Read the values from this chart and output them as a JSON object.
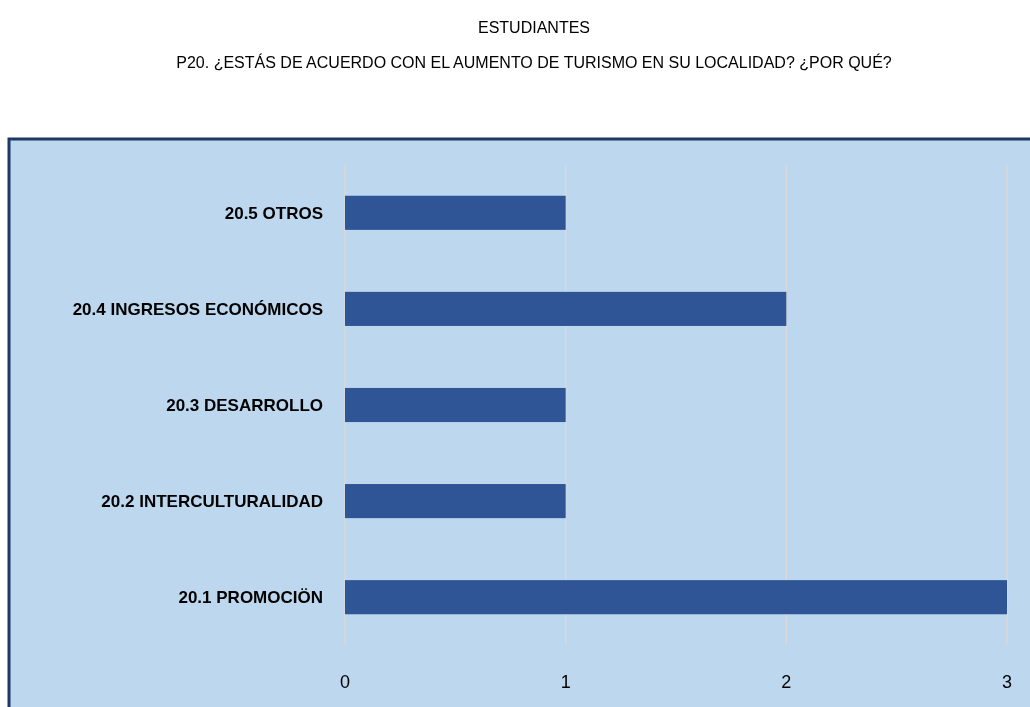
{
  "chart_data": {
    "type": "bar",
    "orientation": "horizontal",
    "title": "ESTUDIANTES",
    "subtitle": "P20. ¿ESTÁS DE ACUERDO CON EL AUMENTO DE TURISMO EN SU LOCALIDAD? ¿POR QUÉ?",
    "categories": [
      "20.5 OTROS",
      "20.4 INGRESOS ECONÓMICOS",
      "20.3 DESARROLLO",
      "20.2 INTERCULTURALIDAD",
      "20.1 PROMOCIÖN"
    ],
    "values": [
      1,
      2,
      1,
      1,
      3
    ],
    "color": "#2f5597",
    "xlim": [
      0,
      3
    ],
    "xticks": [
      0,
      1,
      2,
      3
    ],
    "grid": "x"
  }
}
